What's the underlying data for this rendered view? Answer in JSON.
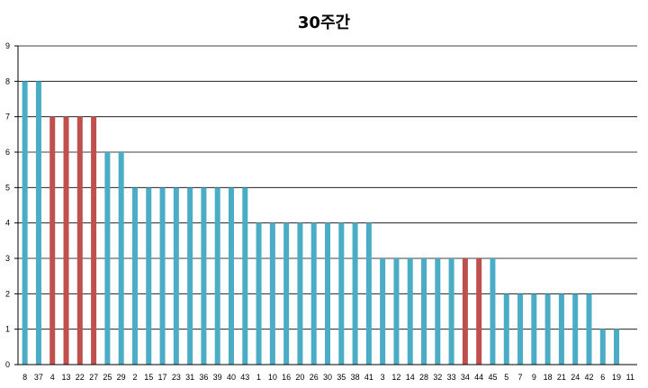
{
  "chart_data": {
    "type": "bar",
    "title": "30주간",
    "xlabel": "",
    "ylabel": "",
    "ylim": [
      0,
      9
    ],
    "yticks": [
      "0",
      "1",
      "2",
      "3",
      "4",
      "5",
      "6",
      "7",
      "8",
      "9"
    ],
    "grid": true,
    "categories": [
      "8",
      "37",
      "4",
      "13",
      "22",
      "27",
      "25",
      "29",
      "2",
      "15",
      "17",
      "23",
      "31",
      "36",
      "39",
      "40",
      "43",
      "1",
      "10",
      "16",
      "20",
      "26",
      "30",
      "35",
      "38",
      "41",
      "3",
      "12",
      "14",
      "28",
      "32",
      "33",
      "34",
      "44",
      "45",
      "5",
      "7",
      "9",
      "18",
      "21",
      "24",
      "42",
      "6",
      "19",
      "11"
    ],
    "values": [
      8,
      8,
      7,
      7,
      7,
      7,
      6,
      6,
      5,
      5,
      5,
      5,
      5,
      5,
      5,
      5,
      5,
      4,
      4,
      4,
      4,
      4,
      4,
      4,
      4,
      4,
      3,
      3,
      3,
      3,
      3,
      3,
      3,
      3,
      3,
      2,
      2,
      2,
      2,
      2,
      2,
      2,
      1,
      1,
      0
    ],
    "bar_colors": [
      "#4bacc6",
      "#4bacc6",
      "#c0504d",
      "#c0504d",
      "#c0504d",
      "#c0504d",
      "#4bacc6",
      "#4bacc6",
      "#4bacc6",
      "#4bacc6",
      "#4bacc6",
      "#4bacc6",
      "#4bacc6",
      "#4bacc6",
      "#4bacc6",
      "#4bacc6",
      "#4bacc6",
      "#4bacc6",
      "#4bacc6",
      "#4bacc6",
      "#4bacc6",
      "#4bacc6",
      "#4bacc6",
      "#4bacc6",
      "#4bacc6",
      "#4bacc6",
      "#4bacc6",
      "#4bacc6",
      "#4bacc6",
      "#4bacc6",
      "#4bacc6",
      "#4bacc6",
      "#c0504d",
      "#c0504d",
      "#4bacc6",
      "#4bacc6",
      "#4bacc6",
      "#4bacc6",
      "#4bacc6",
      "#4bacc6",
      "#4bacc6",
      "#4bacc6",
      "#4bacc6",
      "#4bacc6",
      "#4bacc6"
    ]
  }
}
